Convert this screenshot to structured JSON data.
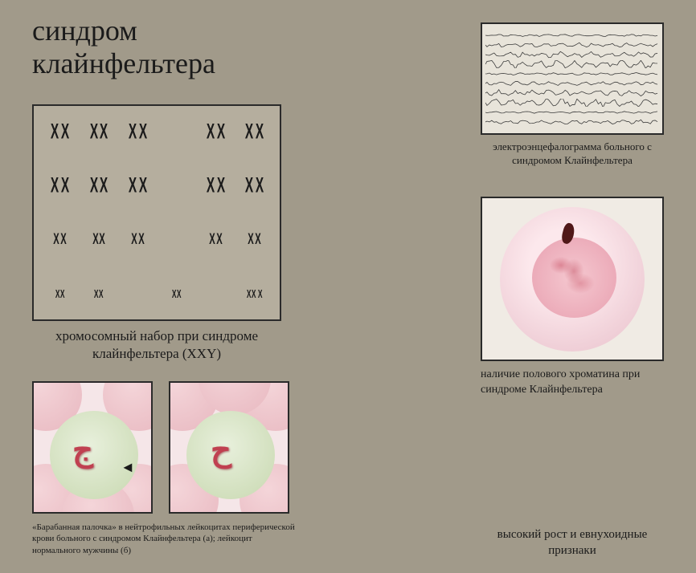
{
  "title_line1": "синдром",
  "title_line2": "клайнфельтера",
  "karyotype": {
    "caption": "хромосомный набор при синдроме клайнфельтера (XXY)",
    "rows": [
      [
        "XX",
        "XX",
        "XX",
        "",
        "XX",
        "XX"
      ],
      [
        "XX",
        "XX",
        "XX",
        "",
        "XX",
        "XX"
      ],
      [
        "XX",
        "XX",
        "XX",
        "",
        "XX",
        "XX"
      ],
      [
        "XX",
        "XX",
        "",
        "XX",
        "",
        "XX X"
      ]
    ],
    "sizes": [
      "",
      "",
      "sm",
      "xs"
    ]
  },
  "cells_caption": "«Барабанная палочка» в нейтрофильных лейкоцитах периферической крови больного с синдромом Клайнфельтера (а); лейкоцит нормального мужчины (б)",
  "eeg": {
    "caption": "электроэнцефалограмма больного с синдромом Клайнфельтера",
    "lines": 10,
    "stroke": "#3a3a3a"
  },
  "chromatin_caption": "наличие полового хроматина при синдроме Клайнфельтера",
  "tall_caption": "высокий рост и евнухоидные признаки",
  "colors": {
    "bg": "#a19a8a",
    "border": "#2a2a2a",
    "text": "#1a1a1a"
  },
  "cell_panels": {
    "a": {
      "nucleus_glyph": "ج",
      "has_drumstick_arrow": true
    },
    "b": {
      "nucleus_glyph": "ح",
      "has_drumstick_arrow": false
    }
  }
}
